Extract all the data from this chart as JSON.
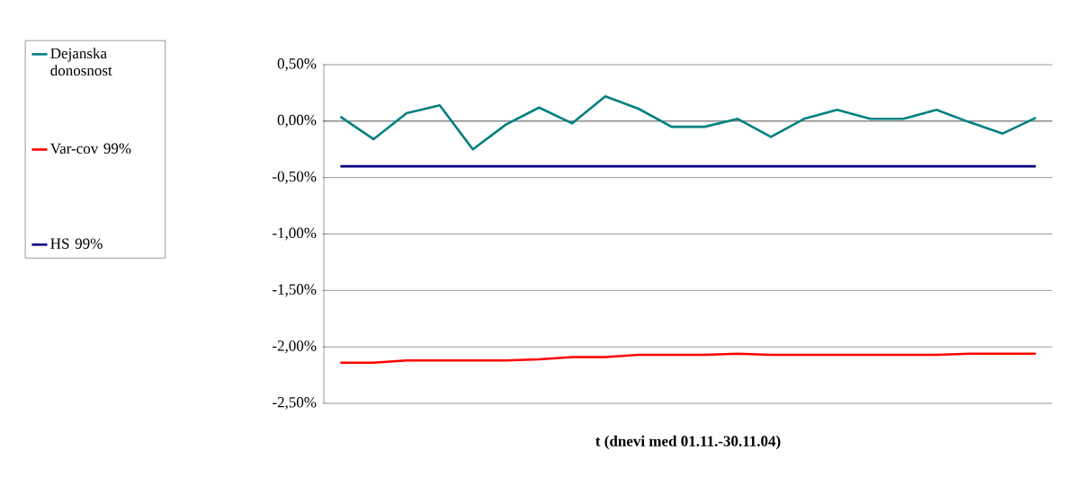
{
  "chart_data": {
    "type": "line",
    "xlabel": "t (dnevi  med 01.11.-30.11.04)",
    "categories": [
      null,
      null,
      null,
      null,
      null,
      null,
      null,
      null,
      null,
      null,
      null,
      null,
      null,
      null,
      null,
      null,
      null,
      null,
      null,
      null,
      null,
      null
    ],
    "series": [
      {
        "name": "Dejanska donosnost",
        "color": "#008080",
        "values": [
          0.04,
          -0.16,
          0.07,
          0.14,
          -0.25,
          -0.03,
          0.12,
          -0.02,
          0.22,
          0.11,
          -0.05,
          -0.05,
          0.02,
          -0.14,
          0.02,
          0.1,
          0.02,
          0.02,
          0.1,
          -0.01,
          -0.11,
          0.03
        ]
      },
      {
        "name": "Var-cov 99%",
        "color": "#ff0000",
        "values": [
          -2.14,
          -2.14,
          -2.12,
          -2.12,
          -2.12,
          -2.12,
          -2.11,
          -2.09,
          -2.09,
          -2.07,
          -2.07,
          -2.07,
          -2.06,
          -2.07,
          -2.07,
          -2.07,
          -2.07,
          -2.07,
          -2.07,
          -2.06,
          -2.06,
          -2.06
        ]
      },
      {
        "name": "HS 99%",
        "color": "#000080",
        "values": [
          -0.4,
          -0.4,
          -0.4,
          -0.4,
          -0.4,
          -0.4,
          -0.4,
          -0.4,
          -0.4,
          -0.4,
          -0.4,
          -0.4,
          -0.4,
          -0.4,
          -0.4,
          -0.4,
          -0.4,
          -0.4,
          -0.4,
          -0.4,
          -0.4,
          -0.4
        ]
      }
    ],
    "ylim": [
      -2.5,
      0.5
    ],
    "yticks": [
      {
        "value": 0.5,
        "label": "0,50%"
      },
      {
        "value": 0,
        "label": "0,00%"
      },
      {
        "value": -0.5,
        "label": "-0,50%"
      },
      {
        "value": -1,
        "label": "-1,00%"
      },
      {
        "value": -1.5,
        "label": "-1,50%"
      },
      {
        "value": -2,
        "label": "-2,00%"
      },
      {
        "value": -2.5,
        "label": "-2,50%"
      }
    ],
    "grid": "y",
    "legend": "left",
    "marker": "none",
    "line_style": "solid"
  }
}
